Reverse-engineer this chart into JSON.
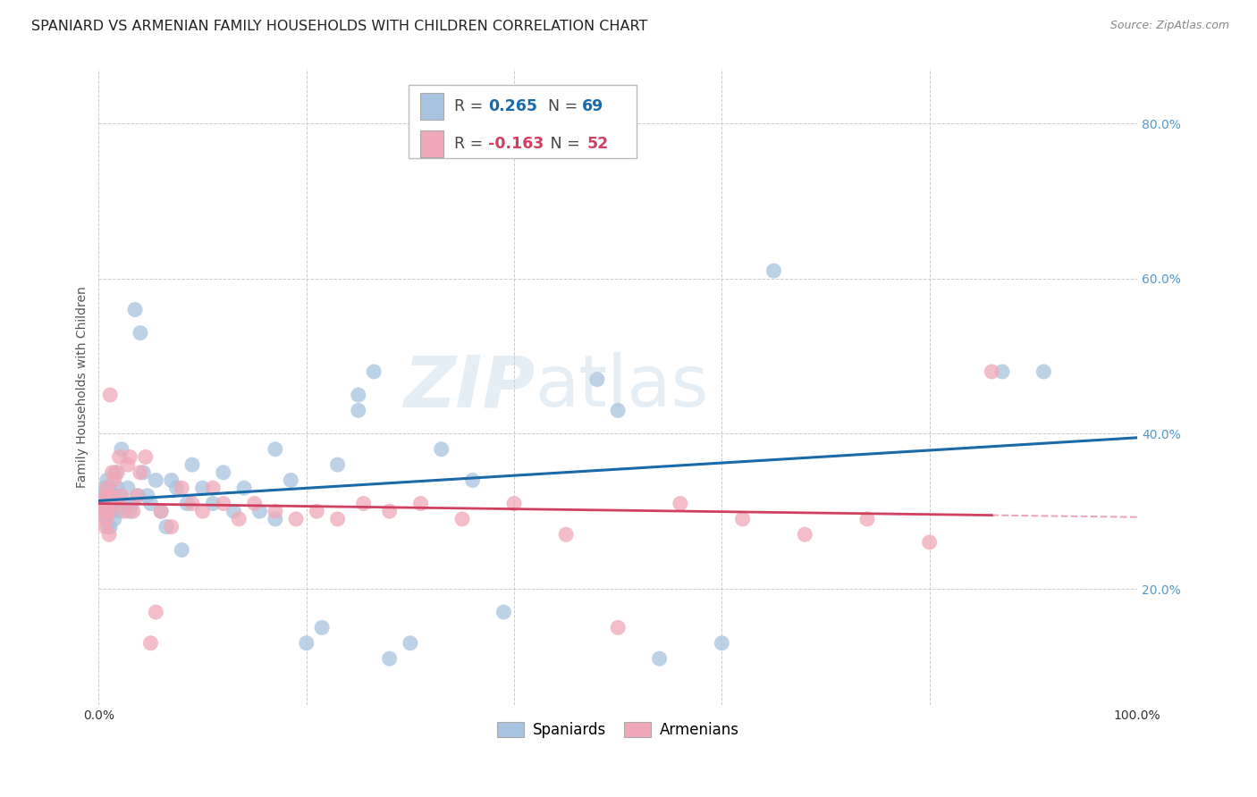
{
  "title": "SPANIARD VS ARMENIAN FAMILY HOUSEHOLDS WITH CHILDREN CORRELATION CHART",
  "source": "Source: ZipAtlas.com",
  "ylabel": "Family Households with Children",
  "xlim": [
    0.0,
    1.0
  ],
  "ylim": [
    0.05,
    0.87
  ],
  "yticks": [
    0.2,
    0.4,
    0.6,
    0.8
  ],
  "ytick_labels": [
    "20.0%",
    "40.0%",
    "60.0%",
    "80.0%"
  ],
  "xticks": [
    0.0,
    0.2,
    0.4,
    0.6,
    0.8,
    1.0
  ],
  "xtick_labels": [
    "0.0%",
    "",
    "",
    "",
    "",
    "100.0%"
  ],
  "spaniard_color": "#a8c4e0",
  "armenian_color": "#f0a8b8",
  "spaniard_line_color": "#1a6aaa",
  "armenian_line_color": "#d04060",
  "spaniard_R": 0.265,
  "spaniard_N": 69,
  "armenian_R": -0.163,
  "armenian_N": 52,
  "spaniard_x": [
    0.004,
    0.005,
    0.006,
    0.006,
    0.007,
    0.007,
    0.008,
    0.008,
    0.009,
    0.009,
    0.01,
    0.01,
    0.011,
    0.011,
    0.012,
    0.013,
    0.014,
    0.015,
    0.016,
    0.017,
    0.018,
    0.019,
    0.02,
    0.022,
    0.025,
    0.028,
    0.03,
    0.032,
    0.035,
    0.038,
    0.04,
    0.043,
    0.047,
    0.05,
    0.055,
    0.06,
    0.065,
    0.07,
    0.075,
    0.08,
    0.085,
    0.09,
    0.1,
    0.11,
    0.12,
    0.13,
    0.14,
    0.155,
    0.17,
    0.185,
    0.2,
    0.215,
    0.23,
    0.25,
    0.265,
    0.28,
    0.3,
    0.33,
    0.36,
    0.39,
    0.17,
    0.25,
    0.48,
    0.5,
    0.54,
    0.6,
    0.65,
    0.87,
    0.91
  ],
  "spaniard_y": [
    0.32,
    0.3,
    0.31,
    0.33,
    0.29,
    0.32,
    0.3,
    0.34,
    0.31,
    0.28,
    0.33,
    0.3,
    0.32,
    0.28,
    0.31,
    0.3,
    0.32,
    0.29,
    0.35,
    0.31,
    0.33,
    0.3,
    0.32,
    0.38,
    0.31,
    0.33,
    0.3,
    0.31,
    0.56,
    0.32,
    0.53,
    0.35,
    0.32,
    0.31,
    0.34,
    0.3,
    0.28,
    0.34,
    0.33,
    0.25,
    0.31,
    0.36,
    0.33,
    0.31,
    0.35,
    0.3,
    0.33,
    0.3,
    0.29,
    0.34,
    0.13,
    0.15,
    0.36,
    0.45,
    0.48,
    0.11,
    0.13,
    0.38,
    0.34,
    0.17,
    0.38,
    0.43,
    0.47,
    0.43,
    0.11,
    0.13,
    0.61,
    0.48,
    0.48
  ],
  "armenian_x": [
    0.004,
    0.005,
    0.006,
    0.007,
    0.007,
    0.008,
    0.009,
    0.01,
    0.01,
    0.011,
    0.012,
    0.013,
    0.015,
    0.017,
    0.018,
    0.02,
    0.022,
    0.025,
    0.028,
    0.03,
    0.033,
    0.037,
    0.04,
    0.045,
    0.05,
    0.055,
    0.06,
    0.07,
    0.08,
    0.09,
    0.1,
    0.11,
    0.12,
    0.135,
    0.15,
    0.17,
    0.19,
    0.21,
    0.23,
    0.255,
    0.28,
    0.31,
    0.35,
    0.4,
    0.45,
    0.5,
    0.56,
    0.62,
    0.68,
    0.74,
    0.8,
    0.86
  ],
  "armenian_y": [
    0.31,
    0.3,
    0.28,
    0.32,
    0.29,
    0.33,
    0.3,
    0.27,
    0.3,
    0.45,
    0.32,
    0.35,
    0.34,
    0.31,
    0.35,
    0.37,
    0.32,
    0.3,
    0.36,
    0.37,
    0.3,
    0.32,
    0.35,
    0.37,
    0.13,
    0.17,
    0.3,
    0.28,
    0.33,
    0.31,
    0.3,
    0.33,
    0.31,
    0.29,
    0.31,
    0.3,
    0.29,
    0.3,
    0.29,
    0.31,
    0.3,
    0.31,
    0.29,
    0.31,
    0.27,
    0.15,
    0.31,
    0.29,
    0.27,
    0.29,
    0.26,
    0.48
  ],
  "grid_color": "#cccccc",
  "background_color": "#ffffff",
  "title_fontsize": 11.5,
  "axis_label_fontsize": 10,
  "tick_fontsize": 10,
  "watermark_text": "ZIPatlas"
}
